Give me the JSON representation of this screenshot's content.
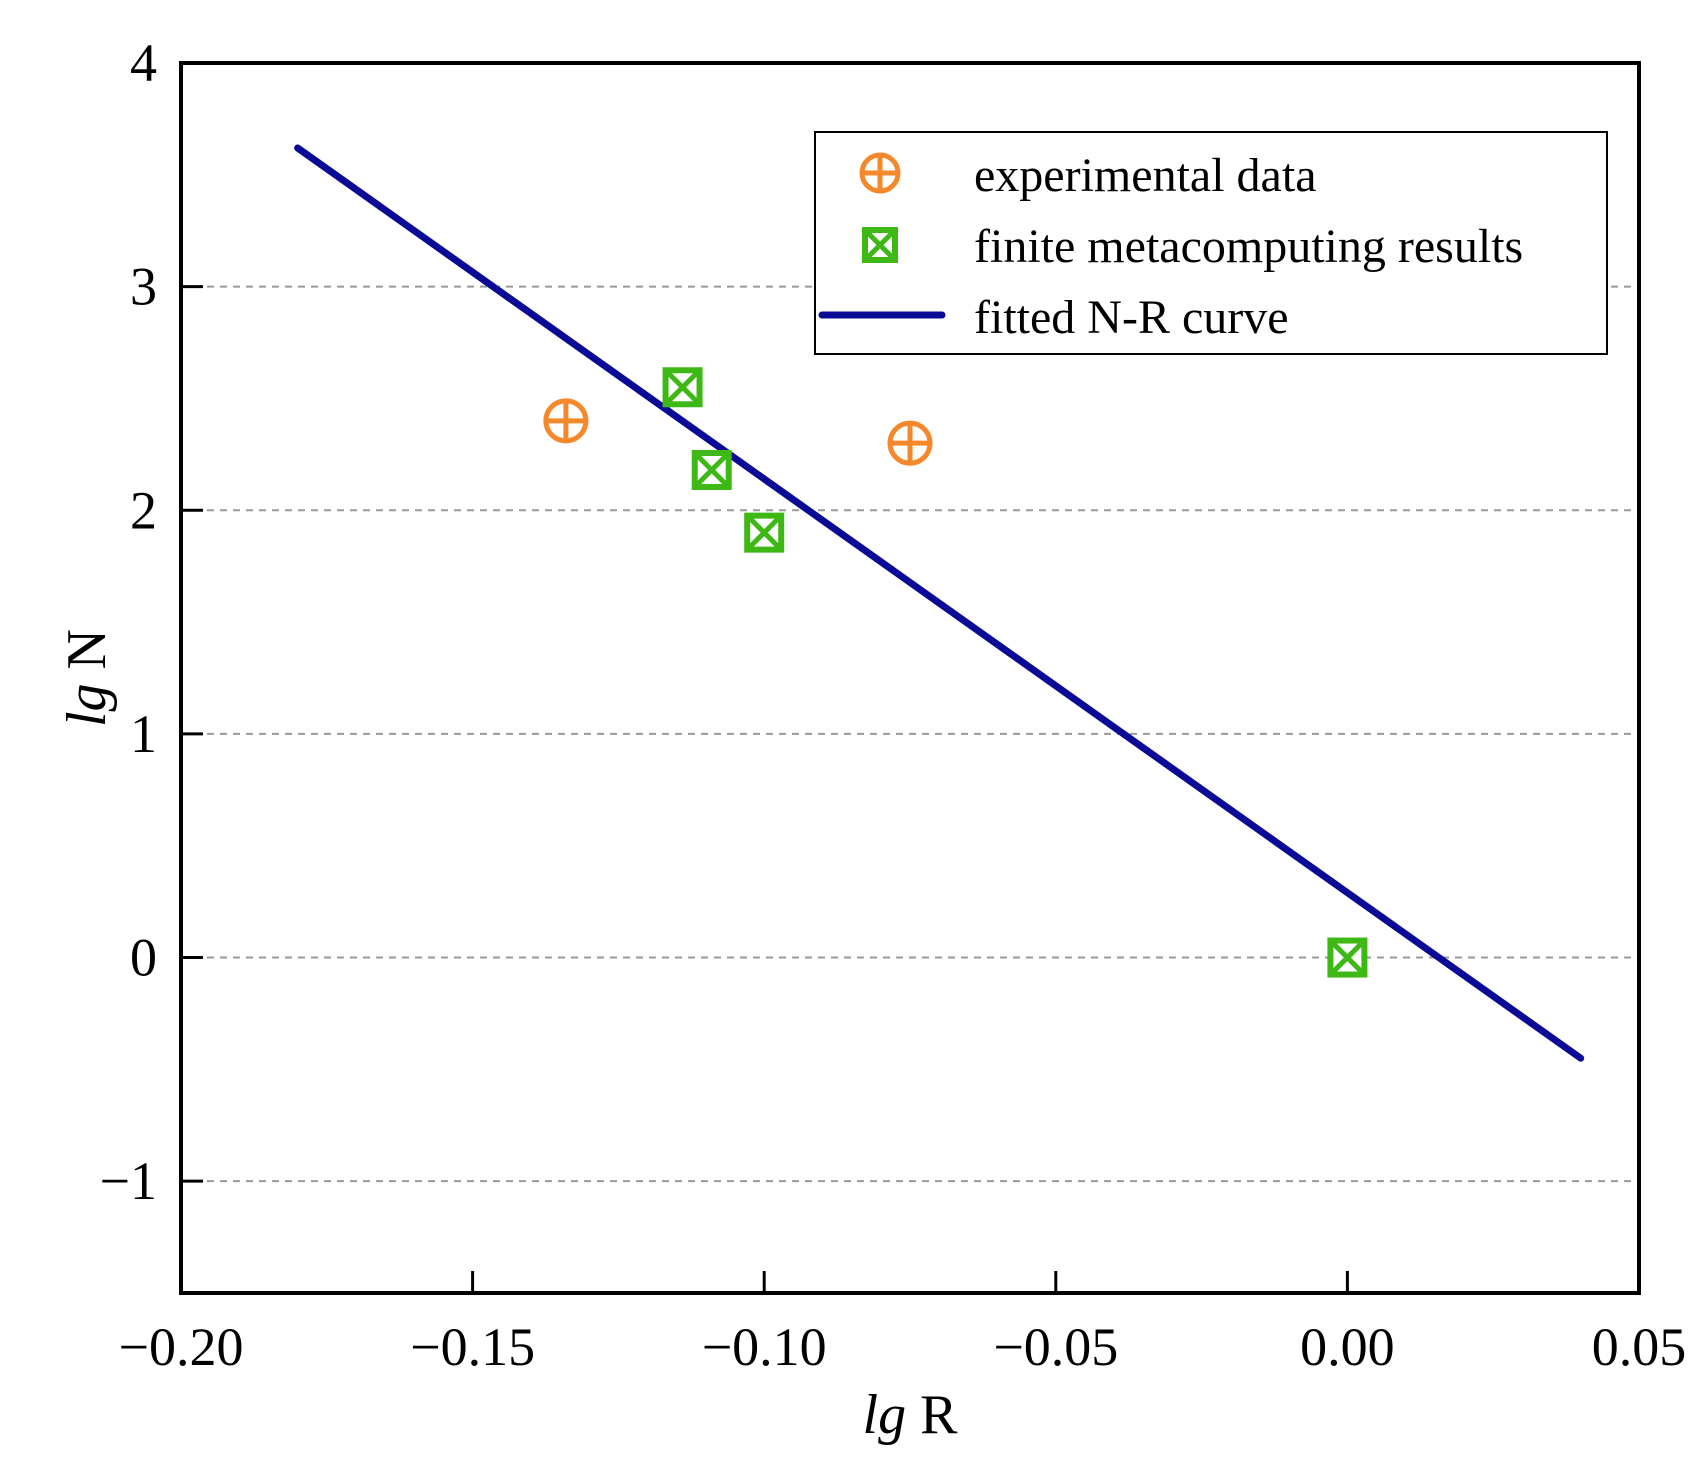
{
  "chart_data": {
    "type": "scatter",
    "title": "",
    "xlabel_italic": "lg",
    "xlabel_rest": " R",
    "ylabel_italic": "lg",
    "ylabel_rest": " N",
    "xlim": [
      -0.2,
      0.05
    ],
    "ylim": [
      -1.5,
      4
    ],
    "xticks": [
      -0.2,
      -0.15,
      -0.1,
      -0.05,
      0.0,
      0.05
    ],
    "xtick_labels": [
      "−0.20",
      "−0.15",
      "−0.10",
      "−0.05",
      "0.00",
      "0.05"
    ],
    "yticks": [
      -1,
      0,
      1,
      2,
      3,
      4
    ],
    "ytick_labels": [
      "−1",
      "0",
      "1",
      "2",
      "3",
      "4"
    ],
    "grid": "horizontal-dashed",
    "legend_position": "top-right",
    "series": [
      {
        "name": "experimental data",
        "kind": "scatter",
        "marker": "circle-plus",
        "color": "#F5882A",
        "points": [
          [
            -0.134,
            2.4
          ],
          [
            -0.075,
            2.3
          ]
        ]
      },
      {
        "name": "finite metacomputing results",
        "kind": "scatter",
        "marker": "square-x",
        "color": "#3DB814",
        "points": [
          [
            -0.114,
            2.55
          ],
          [
            -0.109,
            2.18
          ],
          [
            -0.1,
            1.9
          ],
          [
            0.0,
            0.0
          ]
        ]
      },
      {
        "name": "fitted N-R curve",
        "kind": "line",
        "color": "#0A0A96",
        "points": [
          [
            -0.18,
            3.62
          ],
          [
            0.04,
            -0.45
          ]
        ]
      }
    ]
  }
}
